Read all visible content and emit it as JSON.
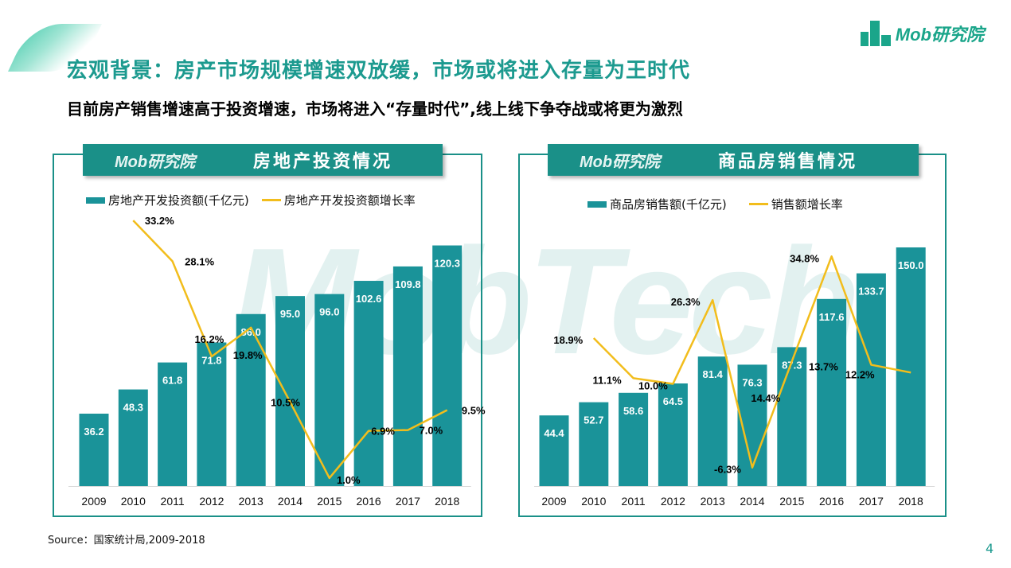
{
  "logo": "Mob研究院",
  "title": "宏观背景：房产市场规模增速双放缓，市场或将进入存量为王时代",
  "subtitle": "目前房产销售增速高于投资增速，市场将进入“存量时代”,线上线下争夺战或将更为激烈",
  "watermark": "MobTech",
  "source": "Source：国家统计局,2009-2018",
  "page_number": "4",
  "colors": {
    "bar": "#1a9399",
    "line": "#f2bd1c",
    "accent": "#1a9088"
  },
  "chart_data": [
    {
      "type": "bar+line",
      "title": "房地产投资情况",
      "banner_logo": "Mob研究院",
      "categories": [
        "2009",
        "2010",
        "2011",
        "2012",
        "2013",
        "2014",
        "2015",
        "2016",
        "2017",
        "2018"
      ],
      "series": [
        {
          "name": "房地产开发投资额(千亿元)",
          "type": "bar",
          "values": [
            36.2,
            48.3,
            61.8,
            71.8,
            86.0,
            95.0,
            96.0,
            102.6,
            109.8,
            120.3
          ],
          "labels": [
            "36.2",
            "48.3",
            "61.8",
            "71.8",
            "86.0",
            "95.0",
            "96.0",
            "102.6",
            "109.8",
            "120.3"
          ]
        },
        {
          "name": "房地产开发投资额增长率",
          "type": "line",
          "values": [
            null,
            33.2,
            28.1,
            16.2,
            19.8,
            10.5,
            1.0,
            6.9,
            7.0,
            9.5
          ],
          "labels": [
            null,
            "33.2%",
            "28.1%",
            "16.2%",
            "19.8%",
            "10.5%",
            "1.0%",
            "6.9%",
            "7.0%",
            "9.5%"
          ]
        }
      ],
      "ylim": [
        0,
        140
      ],
      "y2lim": [
        0,
        35
      ],
      "legend": "top"
    },
    {
      "type": "bar+line",
      "title": "商品房销售情况",
      "banner_logo": "Mob研究院",
      "categories": [
        "2009",
        "2010",
        "2011",
        "2012",
        "2013",
        "2014",
        "2015",
        "2016",
        "2017",
        "2018"
      ],
      "series": [
        {
          "name": "商品房销售额(千亿元)",
          "type": "bar",
          "values": [
            44.4,
            52.7,
            58.6,
            64.5,
            81.4,
            76.3,
            87.3,
            117.6,
            133.7,
            150.0
          ],
          "labels": [
            "44.4",
            "52.7",
            "58.6",
            "64.5",
            "81.4",
            "76.3",
            "87.3",
            "117.6",
            "133.7",
            "150.0"
          ]
        },
        {
          "name": "销售额增长率",
          "type": "line",
          "values": [
            null,
            18.9,
            11.1,
            10.0,
            26.3,
            -6.3,
            14.4,
            34.8,
            13.7,
            12.2
          ],
          "labels": [
            null,
            "18.9%",
            "11.1%",
            "10.0%",
            "26.3%",
            "-6.3%",
            "14.4%",
            "34.8%",
            "13.7%",
            "12.2%"
          ]
        }
      ],
      "ylim": [
        0,
        176
      ],
      "y2lim": [
        -9.9,
        44.6
      ],
      "legend": "top"
    }
  ]
}
